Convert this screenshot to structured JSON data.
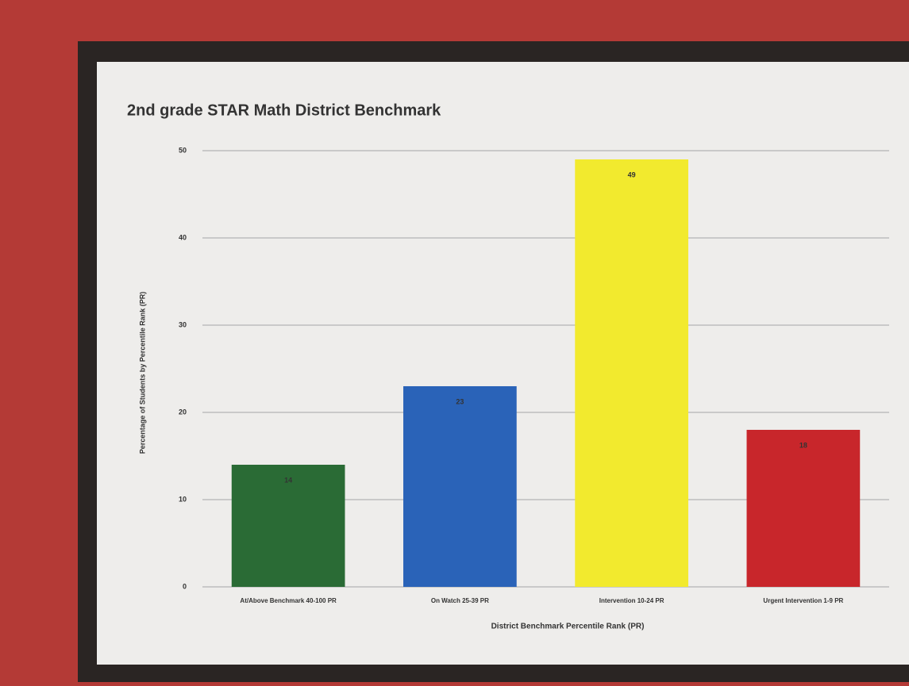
{
  "chart_data": {
    "type": "bar",
    "title": "2nd grade STAR Math District Benchmark",
    "y_label": "Percentage of Students by Percentile Rank (PR)",
    "x_label": "District Benchmark Percentile Rank (PR)",
    "categories": [
      "At/Above Benchmark 40-100 PR",
      "On Watch 25-39 PR",
      "Intervention 10-24 PR",
      "Urgent Intervention 1-9 PR"
    ],
    "values": [
      14,
      23,
      49,
      18
    ],
    "colors": [
      "#2a6b35",
      "#2a63b8",
      "#f2ea2e",
      "#c8262b"
    ],
    "ylim": [
      0,
      50
    ],
    "yticks": [
      0,
      10,
      20,
      30,
      40,
      50
    ],
    "grid": true
  }
}
